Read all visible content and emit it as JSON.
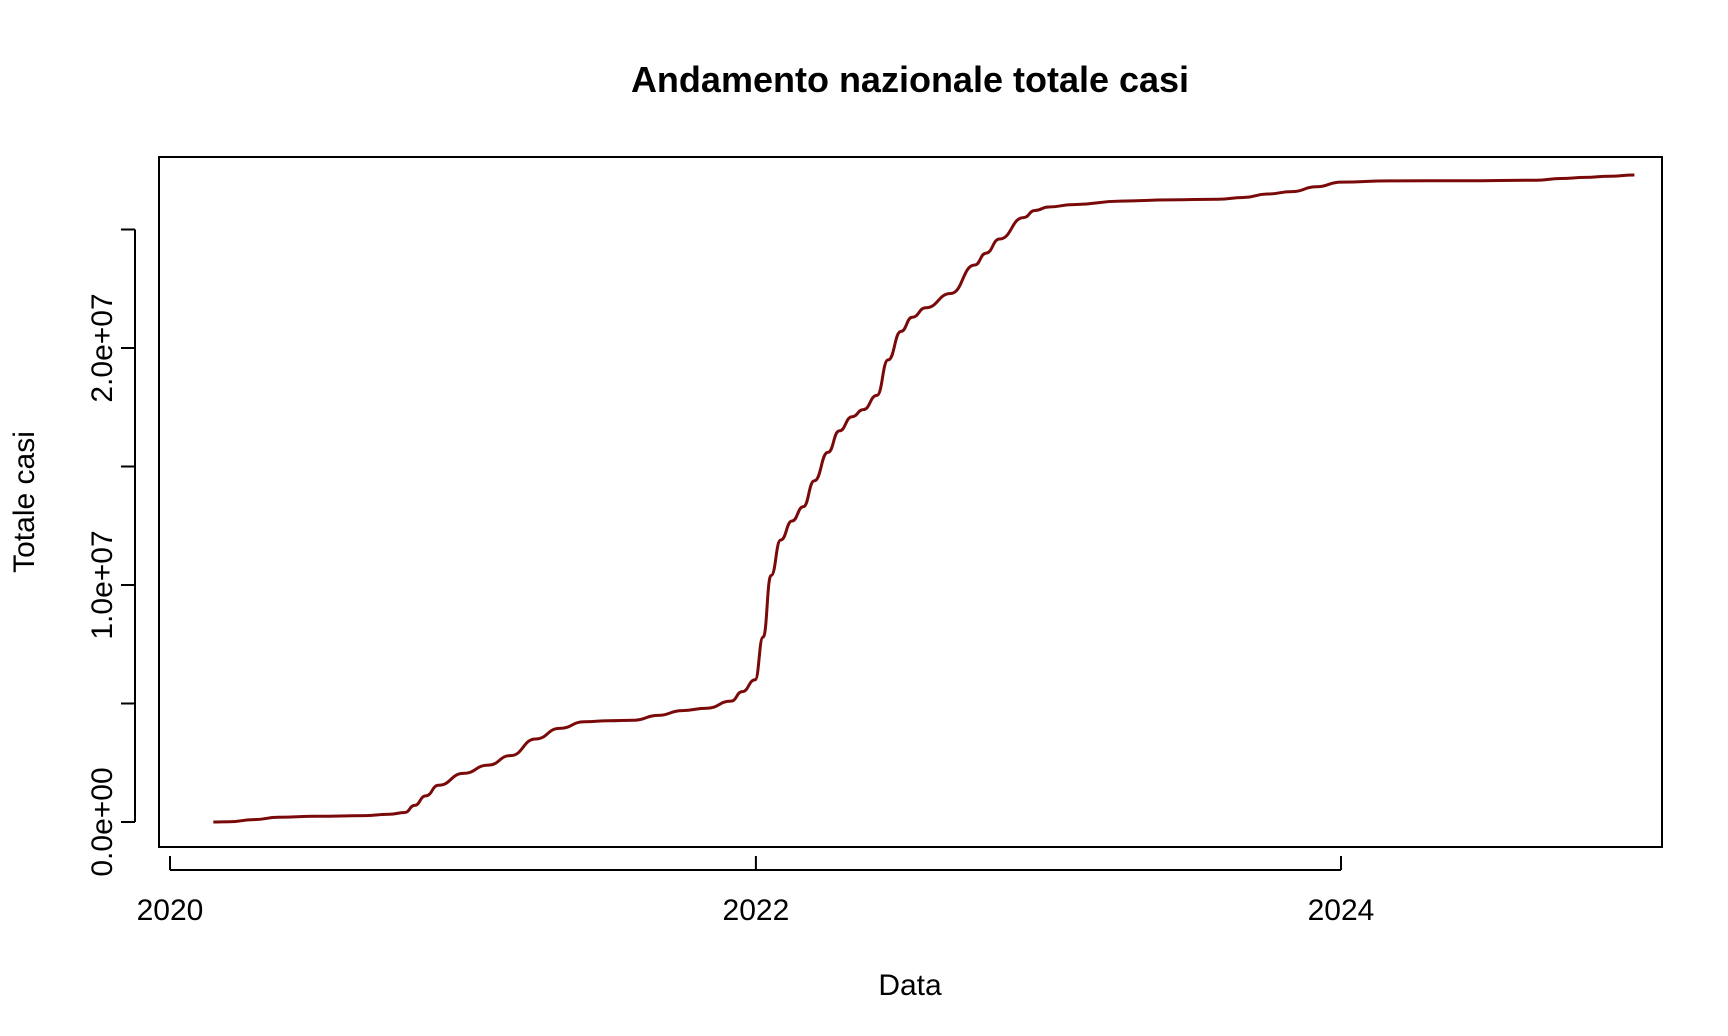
{
  "chart_data": {
    "type": "line",
    "title": "Andamento nazionale totale casi",
    "xlabel": "Data",
    "ylabel": "Totale casi",
    "x_ticks": [
      "2020-01-01",
      "2022-01-01",
      "2024-01-01"
    ],
    "x_tick_labels": [
      "2020",
      "2022",
      "2024"
    ],
    "y_ticks": [
      0,
      5000000,
      10000000,
      15000000,
      20000000,
      25000000
    ],
    "y_tick_labels": [
      "0.0e+00",
      "",
      "1.0e+07",
      "",
      "2.0e+07",
      ""
    ],
    "xlim": [
      "2020-01-01",
      "2024-12-31"
    ],
    "ylim": [
      -1000000,
      28000000
    ],
    "grid": false,
    "legend": "none",
    "line_color": "#7a0a0a",
    "series": [
      {
        "x": [
          "2020-02-24",
          "2020-03-15",
          "2020-04-15",
          "2020-05-15",
          "2020-07-01",
          "2020-09-01",
          "2020-10-01",
          "2020-10-20",
          "2020-11-01",
          "2020-11-15",
          "2020-12-01",
          "2021-01-01",
          "2021-02-01",
          "2021-03-01",
          "2021-04-01",
          "2021-05-01",
          "2021-06-01",
          "2021-07-01",
          "2021-08-01",
          "2021-09-01",
          "2021-10-01",
          "2021-11-01",
          "2021-12-01",
          "2021-12-15",
          "2021-12-31",
          "2022-01-10",
          "2022-01-20",
          "2022-02-01",
          "2022-02-15",
          "2022-03-01",
          "2022-03-15",
          "2022-04-01",
          "2022-04-15",
          "2022-05-01",
          "2022-05-15",
          "2022-06-01",
          "2022-06-15",
          "2022-07-01",
          "2022-07-15",
          "2022-08-01",
          "2022-09-01",
          "2022-10-01",
          "2022-10-15",
          "2022-11-01",
          "2022-12-01",
          "2022-12-15",
          "2023-01-01",
          "2023-02-01",
          "2023-04-01",
          "2023-06-01",
          "2023-08-01",
          "2023-09-01",
          "2023-10-01",
          "2023-11-01",
          "2023-12-01",
          "2024-01-01",
          "2024-03-01",
          "2024-06-01",
          "2024-09-01",
          "2024-10-01",
          "2024-11-01",
          "2024-12-01",
          "2025-01-01"
        ],
        "y": [
          0,
          10000,
          100000,
          200000,
          240000,
          270000,
          330000,
          400000,
          700000,
          1100000,
          1550000,
          2050000,
          2400000,
          2800000,
          3500000,
          3950000,
          4230000,
          4270000,
          4290000,
          4500000,
          4700000,
          4800000,
          5100000,
          5500000,
          6000000,
          7800000,
          10400000,
          11900000,
          12700000,
          13300000,
          14400000,
          15600000,
          16500000,
          17100000,
          17400000,
          18000000,
          19500000,
          20700000,
          21300000,
          21700000,
          22300000,
          23500000,
          24000000,
          24600000,
          25500000,
          25800000,
          25950000,
          26050000,
          26200000,
          26250000,
          26280000,
          26350000,
          26500000,
          26600000,
          26800000,
          27000000,
          27050000,
          27060000,
          27080000,
          27150000,
          27200000,
          27250000,
          27300000
        ]
      }
    ]
  }
}
